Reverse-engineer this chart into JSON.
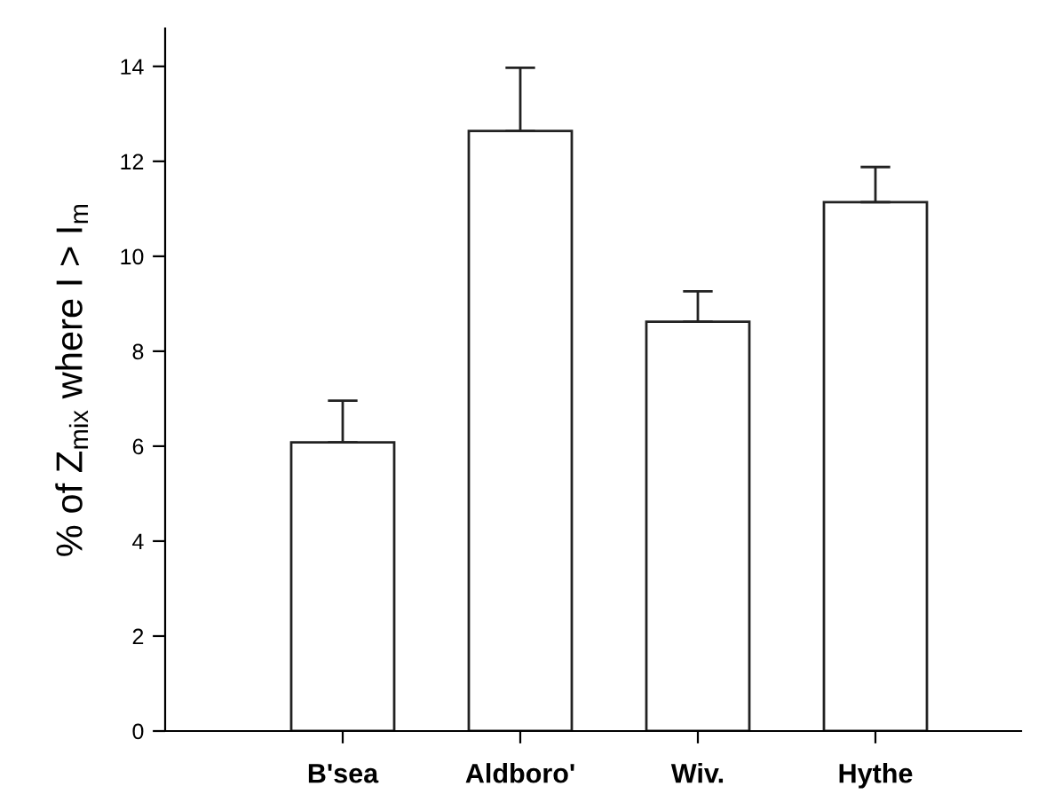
{
  "chart_data": {
    "type": "bar",
    "ylabel": "% of Z$_{mix}$ where I > I$_{m}$",
    "categories": [
      "B'sea",
      "Aldboro'",
      "Wiv.",
      "Hythe"
    ],
    "values": [
      6.08,
      12.64,
      8.62,
      11.14
    ],
    "errors": [
      [
        6.08,
        6.96
      ],
      [
        12.64,
        13.97
      ],
      [
        8.62,
        9.26
      ],
      [
        11.14,
        11.88
      ]
    ],
    "color": "#ffffff",
    "ylim": [
      0,
      14.8
    ],
    "yticks": [
      0,
      2,
      4,
      6,
      8,
      10,
      12,
      14
    ],
    "grid": false
  }
}
